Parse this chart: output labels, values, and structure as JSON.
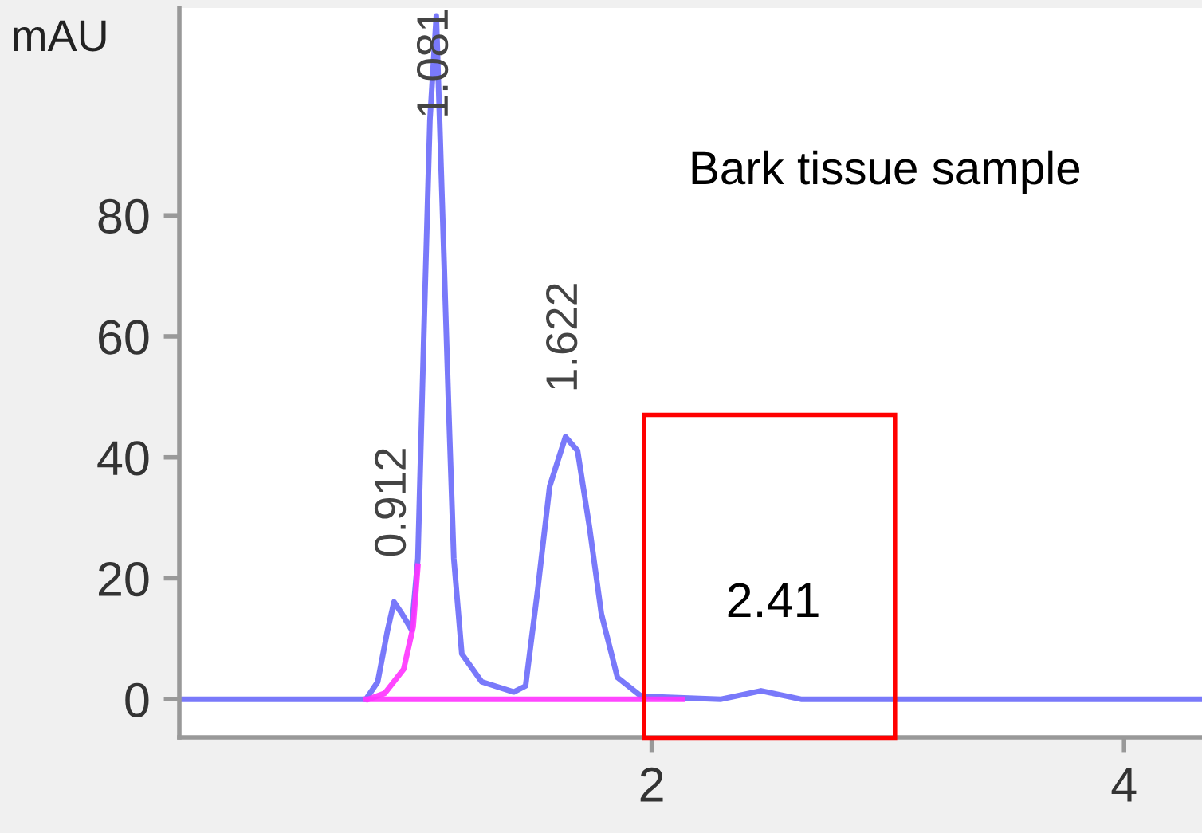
{
  "chart_data": {
    "type": "line",
    "ylabel": "mAU",
    "series": [
      {
        "color": "#6a6afa",
        "x": [
          0,
          0.79,
          0.84,
          0.882,
          0.909,
          0.943,
          0.983,
          1.01,
          1.037,
          1.061,
          1.088,
          1.118,
          1.139,
          1.162,
          1.196,
          1.28,
          1.416,
          1.466,
          1.517,
          1.568,
          1.635,
          1.686,
          1.736,
          1.787,
          1.855,
          1.956,
          2.294,
          2.463,
          2.632,
          4.33
        ],
        "values": [
          0,
          0,
          2.9,
          11.5,
          16.1,
          14.1,
          11.5,
          23.3,
          62.9,
          95.8,
          113,
          76,
          49.7,
          23.3,
          7.5,
          2.9,
          1.2,
          2.2,
          18,
          35.2,
          43.4,
          41.1,
          28.6,
          14.1,
          3.6,
          0.5,
          0,
          1.4,
          0,
          0
        ]
      },
      {
        "color": "#ff33ff",
        "x": [
          0.79,
          2.13
        ],
        "values": [
          0,
          0
        ]
      },
      {
        "color": "#ff33ff",
        "x": [
          0.8,
          0.87,
          0.95,
          0.99,
          1.01
        ],
        "values": [
          0,
          1,
          5,
          12,
          22
        ]
      }
    ],
    "annotations": [
      {
        "text": "0.912",
        "x": 0.909,
        "y": 16.1
      },
      {
        "text": "1.081",
        "x": 1.088,
        "y": 113
      },
      {
        "text": "1.622",
        "x": 1.635,
        "y": 43.4
      },
      {
        "text": "2.41",
        "x": 2.463,
        "y": 1.4
      },
      "Bark tissue sample"
    ],
    "xlim": [
      0,
      4.33
    ],
    "ylim": [
      -6.3,
      114.3
    ],
    "xticks": [
      2,
      4
    ],
    "yticks": [
      0,
      20,
      40,
      60,
      80
    ],
    "grid": false,
    "legend": false,
    "marker": "none",
    "line_style": "solid"
  }
}
